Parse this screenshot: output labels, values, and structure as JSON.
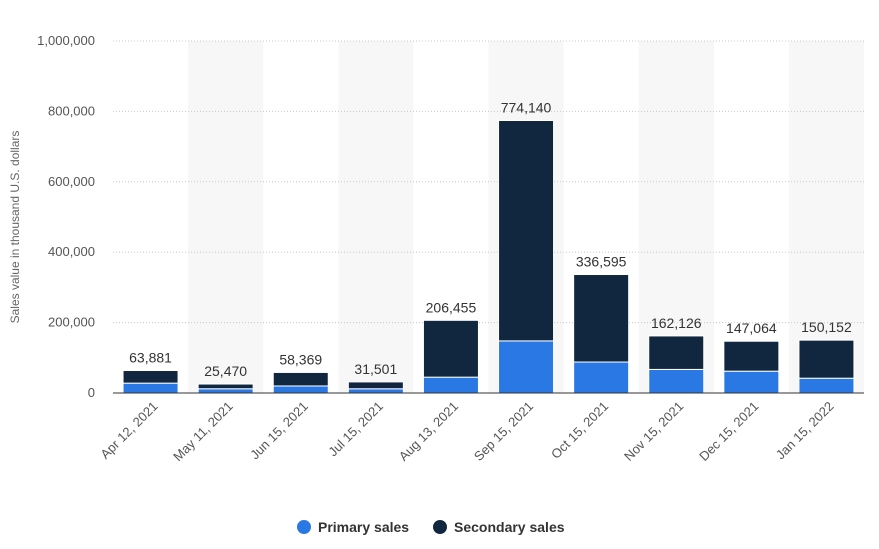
{
  "chart_data": {
    "type": "bar",
    "stacked": true,
    "ylabel": "Sales value in thousand U.S. dollars",
    "ylim": [
      0,
      1000000
    ],
    "yticks": [
      0,
      200000,
      400000,
      600000,
      800000,
      1000000
    ],
    "ytick_labels": [
      "0",
      "200,000",
      "400,000",
      "600,000",
      "800,000",
      "1,000,000"
    ],
    "categories": [
      "Apr 12, 2021",
      "May 11, 2021",
      "Jun 15, 2021",
      "Jul 15, 2021",
      "Aug 13, 2021",
      "Sep 15, 2021",
      "Oct 15, 2021",
      "Nov 15, 2021",
      "Dec 15, 2021",
      "Jan 15, 2022"
    ],
    "series": [
      {
        "name": "Primary sales",
        "color": "#2a78e4",
        "values": [
          28000,
          12000,
          20000,
          12000,
          45000,
          148000,
          88000,
          67000,
          62000,
          42000
        ]
      },
      {
        "name": "Secondary sales",
        "color": "#11263f",
        "values": [
          35881,
          13470,
          38369,
          19501,
          161455,
          626140,
          248595,
          95126,
          85064,
          108152
        ]
      }
    ],
    "totals": [
      63881,
      25470,
      58369,
      31501,
      206455,
      774140,
      336595,
      162126,
      147064,
      150152
    ],
    "total_labels": [
      "63,881",
      "25,470",
      "58,369",
      "31,501",
      "206,455",
      "774,140",
      "336,595",
      "162,126",
      "147,064",
      "150,152"
    ],
    "grid": true,
    "legend_position": "bottom-center"
  }
}
